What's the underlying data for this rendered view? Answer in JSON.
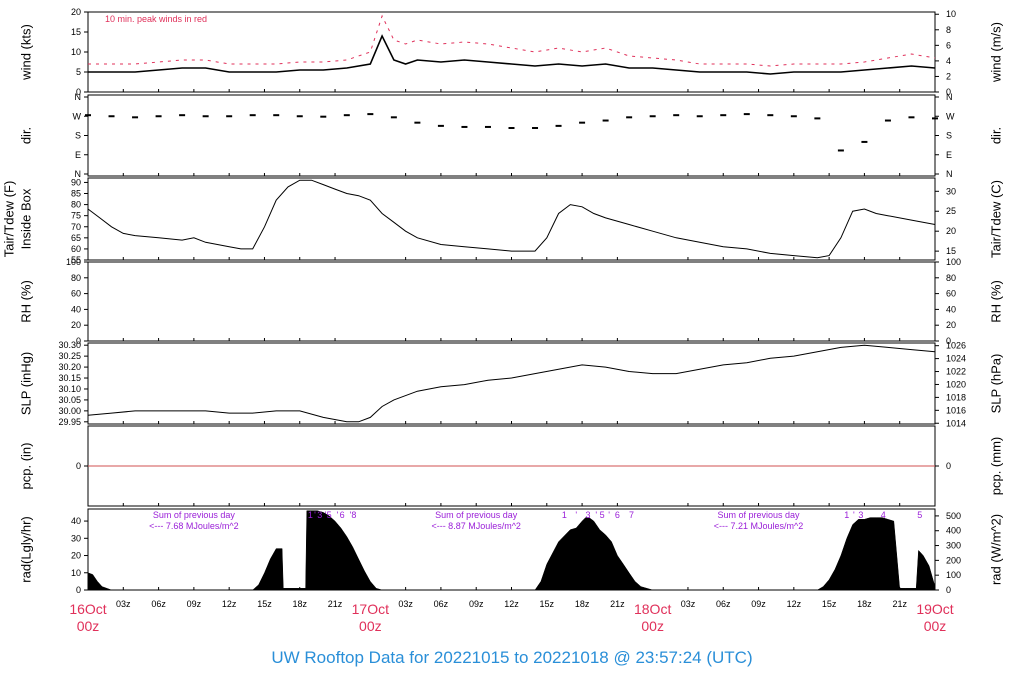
{
  "footer": {
    "title": "UW Rooftop Data for 20221015  to  20221018 @ 23:57:24  (UTC)"
  },
  "colors": {
    "frame": "#000000",
    "peak": "#e0305a",
    "day_label": "#e0305a",
    "pcp_line": "#d05050",
    "annotation": "#9a1fd8",
    "title": "#2a8fd8"
  },
  "time_axis": {
    "range_hours": [
      0,
      72
    ],
    "minor_tick_labels": [
      {
        "h": 3,
        "t": "03z"
      },
      {
        "h": 6,
        "t": "06z"
      },
      {
        "h": 9,
        "t": "09z"
      },
      {
        "h": 12,
        "t": "12z"
      },
      {
        "h": 15,
        "t": "15z"
      },
      {
        "h": 18,
        "t": "18z"
      },
      {
        "h": 21,
        "t": "21z"
      },
      {
        "h": 27,
        "t": "03z"
      },
      {
        "h": 30,
        "t": "06z"
      },
      {
        "h": 33,
        "t": "09z"
      },
      {
        "h": 36,
        "t": "12z"
      },
      {
        "h": 39,
        "t": "15z"
      },
      {
        "h": 42,
        "t": "18z"
      },
      {
        "h": 45,
        "t": "21z"
      },
      {
        "h": 51,
        "t": "03z"
      },
      {
        "h": 54,
        "t": "06z"
      },
      {
        "h": 57,
        "t": "09z"
      },
      {
        "h": 60,
        "t": "12z"
      },
      {
        "h": 63,
        "t": "15z"
      },
      {
        "h": 66,
        "t": "18z"
      },
      {
        "h": 69,
        "t": "21z"
      }
    ],
    "day_labels": [
      {
        "h": 0,
        "date": "16Oct",
        "time": "00z"
      },
      {
        "h": 24,
        "date": "17Oct",
        "time": "00z"
      },
      {
        "h": 48,
        "date": "18Oct",
        "time": "00z"
      },
      {
        "h": 72,
        "date": "19Oct",
        "time": "00z"
      }
    ]
  },
  "chart_data": [
    {
      "id": "wind",
      "type": "line",
      "ylabel_left": "wind (kts)",
      "ylabel_right": "wind (m/s)",
      "ylim": [
        0,
        20
      ],
      "yticks_left": [
        0,
        5,
        10,
        15,
        20
      ],
      "yticks_right": [
        0,
        2,
        4,
        6,
        8,
        10
      ],
      "right_scale": "m/s",
      "annotation": "10 min. peak winds in red",
      "x_hours": [
        0,
        2,
        4,
        6,
        8,
        10,
        12,
        14,
        16,
        18,
        20,
        22,
        24,
        25,
        26,
        27,
        28,
        30,
        32,
        34,
        36,
        38,
        40,
        42,
        44,
        46,
        48,
        50,
        52,
        54,
        56,
        58,
        60,
        62,
        64,
        66,
        68,
        70,
        72
      ],
      "series": [
        {
          "values": [
            5,
            5,
            5,
            5.5,
            6,
            6,
            5,
            5,
            5,
            5.5,
            5.5,
            6,
            7,
            14,
            8,
            7,
            8,
            7.5,
            8,
            7.5,
            7,
            6.5,
            7,
            6.5,
            7,
            6,
            6,
            5.5,
            5,
            5,
            5,
            4.5,
            5,
            5,
            5,
            5.5,
            6,
            6.5,
            6
          ]
        },
        {
          "name": "10 min. peak winds",
          "style": "peak",
          "values": [
            7,
            7,
            7,
            7.5,
            8,
            8,
            7,
            7,
            7,
            7.5,
            7.5,
            8,
            10,
            19,
            13,
            12,
            13,
            12,
            12.5,
            12,
            11,
            10,
            11,
            10,
            11,
            9,
            8.5,
            8,
            7,
            7,
            7,
            6.5,
            7,
            7,
            7,
            7.5,
            8.5,
            9.5,
            8.5
          ]
        }
      ]
    },
    {
      "id": "dir",
      "type": "scatter",
      "ylabel_left": "dir.",
      "ylabel_right": "dir.",
      "yticks_labels": [
        "N",
        "E",
        "S",
        "W",
        "N"
      ],
      "ylim": [
        0,
        360
      ],
      "x_hours": [
        0,
        2,
        4,
        6,
        8,
        10,
        12,
        14,
        16,
        18,
        20,
        22,
        24,
        26,
        28,
        30,
        32,
        34,
        36,
        38,
        40,
        42,
        44,
        46,
        48,
        50,
        52,
        54,
        56,
        58,
        60,
        62,
        64,
        66,
        68,
        70,
        72
      ],
      "values": [
        275,
        270,
        265,
        270,
        275,
        270,
        270,
        275,
        275,
        270,
        268,
        275,
        280,
        265,
        240,
        225,
        220,
        220,
        215,
        215,
        225,
        240,
        250,
        265,
        270,
        275,
        270,
        275,
        280,
        275,
        270,
        260,
        110,
        150,
        250,
        265,
        260
      ]
    },
    {
      "id": "temp",
      "type": "line",
      "ylabel_left": [
        "Tair/Tdew (F)",
        "Inside Box"
      ],
      "ylabel_right": "Tair/Tdew (C)",
      "ylim": [
        55,
        92
      ],
      "yticks_left": [
        55,
        60,
        65,
        70,
        75,
        80,
        85,
        90
      ],
      "yticks_right": [
        15,
        20,
        25,
        30
      ],
      "right_scale": "C",
      "x_hours": [
        0,
        1,
        2,
        3,
        4,
        6,
        8,
        9,
        10,
        11,
        12,
        13,
        14,
        15,
        16,
        17,
        18,
        19,
        20,
        21,
        22,
        23,
        24,
        25,
        26,
        27,
        28,
        30,
        32,
        34,
        36,
        38,
        39,
        40,
        41,
        42,
        43,
        44,
        46,
        48,
        50,
        52,
        54,
        56,
        58,
        60,
        62,
        63,
        64,
        65,
        66,
        67,
        68,
        70,
        72
      ],
      "series": [
        {
          "values": [
            78,
            74,
            70,
            67,
            66,
            65,
            64,
            65,
            63,
            62,
            61,
            60,
            60,
            70,
            82,
            88,
            91,
            91,
            89,
            87,
            85,
            84,
            82,
            76,
            72,
            68,
            65,
            62,
            61,
            60,
            59,
            59,
            65,
            76,
            80,
            79,
            76,
            74,
            71,
            68,
            65,
            63,
            61,
            60,
            58,
            57,
            56,
            57,
            65,
            77,
            78,
            76,
            75,
            73,
            71
          ]
        }
      ]
    },
    {
      "id": "rh",
      "type": "line",
      "ylabel_left": "RH (%)",
      "ylabel_right": "RH (%)",
      "ylim": [
        0,
        100
      ],
      "yticks_left": [
        0,
        20,
        40,
        60,
        80,
        100
      ],
      "yticks_right": [
        0,
        20,
        40,
        60,
        80,
        100
      ],
      "series": []
    },
    {
      "id": "slp",
      "type": "line",
      "ylabel_left": "SLP (inHg)",
      "ylabel_right": "SLP (hPa)",
      "ylim": [
        29.94,
        30.31
      ],
      "yticks_left": [
        29.95,
        30.0,
        30.05,
        30.1,
        30.15,
        30.2,
        30.25,
        30.3
      ],
      "yticks_right": [
        1014,
        1016,
        1018,
        1020,
        1022,
        1024,
        1026
      ],
      "right_scale": "hPa",
      "x_hours": [
        0,
        2,
        4,
        6,
        8,
        10,
        12,
        14,
        16,
        18,
        20,
        22,
        23,
        24,
        25,
        26,
        28,
        30,
        32,
        34,
        36,
        38,
        40,
        42,
        44,
        46,
        48,
        50,
        52,
        54,
        56,
        58,
        60,
        62,
        64,
        66,
        68,
        70,
        72
      ],
      "series": [
        {
          "values": [
            29.98,
            29.99,
            30.0,
            30.0,
            30.0,
            30.0,
            29.99,
            29.99,
            30.0,
            30.0,
            29.97,
            29.95,
            29.95,
            29.97,
            30.02,
            30.05,
            30.09,
            30.11,
            30.12,
            30.14,
            30.15,
            30.17,
            30.19,
            30.21,
            30.2,
            30.18,
            30.17,
            30.17,
            30.19,
            30.21,
            30.22,
            30.24,
            30.25,
            30.27,
            30.29,
            30.3,
            30.29,
            30.28,
            30.27
          ]
        }
      ]
    },
    {
      "id": "pcp",
      "type": "line",
      "ylabel_left": "pcp. (in)",
      "ylabel_right": "pcp. (mm)",
      "ylim": [
        -1,
        1
      ],
      "yticks_left": [
        0
      ],
      "yticks_right": [
        0
      ],
      "series": [
        {
          "values": [
            0,
            0
          ]
        }
      ]
    },
    {
      "id": "rad",
      "type": "area",
      "ylabel_left": "rad(Lgly/hr)",
      "ylabel_right": "rad (W/m^2)",
      "ylim": [
        0,
        47
      ],
      "yticks_left": [
        0,
        10,
        20,
        30,
        40
      ],
      "yticks_right": [
        0,
        100,
        200,
        300,
        400,
        500
      ],
      "right_scale": "W/m^2",
      "annotations": [
        {
          "h": 9,
          "lines": [
            "Sum of previous day",
            "<--- 7.68 MJoules/m^2"
          ]
        },
        {
          "h": 33,
          "lines": [
            "Sum of previous day",
            "<--- 8.87 MJoules/m^2"
          ]
        },
        {
          "h": 57,
          "lines": [
            "Sum of previous day",
            "<--- 7.21 MJoules/m^2"
          ]
        }
      ],
      "marks": [
        {
          "h": 18.9,
          "t": "1"
        },
        {
          "h": 19.3,
          "t": "'"
        },
        {
          "h": 19.7,
          "t": "3"
        },
        {
          "h": 20.2,
          "t": "'"
        },
        {
          "h": 20.5,
          "t": "5"
        },
        {
          "h": 21.2,
          "t": "'"
        },
        {
          "h": 21.6,
          "t": "6"
        },
        {
          "h": 22.3,
          "t": "'"
        },
        {
          "h": 22.6,
          "t": "8"
        },
        {
          "h": 40.5,
          "t": "1"
        },
        {
          "h": 41.5,
          "t": "'"
        },
        {
          "h": 42.5,
          "t": "3"
        },
        {
          "h": 43.2,
          "t": "'"
        },
        {
          "h": 43.7,
          "t": "5"
        },
        {
          "h": 44.3,
          "t": "'"
        },
        {
          "h": 45,
          "t": "6"
        },
        {
          "h": 46.2,
          "t": "7"
        },
        {
          "h": 64.5,
          "t": "1"
        },
        {
          "h": 65.1,
          "t": "'"
        },
        {
          "h": 65.7,
          "t": "3"
        },
        {
          "h": 67.6,
          "t": "4"
        },
        {
          "h": 70.7,
          "t": "5"
        }
      ],
      "x_hours": [
        0,
        0.4,
        0.8,
        1.2,
        2,
        14,
        14.5,
        15,
        15.5,
        16,
        16.5,
        16.6,
        17,
        18,
        18.5,
        18.6,
        19,
        19.5,
        20,
        20.5,
        21,
        21.5,
        22,
        22.5,
        23,
        23.5,
        24,
        24.5,
        25,
        38,
        38.5,
        39,
        40,
        41,
        41.5,
        42,
        42.3,
        42.6,
        43,
        43.5,
        44,
        44.5,
        45,
        45.5,
        46,
        46.5,
        47,
        48,
        62,
        62.5,
        63,
        63.5,
        64,
        64.5,
        65,
        65.5,
        66,
        66.5,
        67,
        67.5,
        68,
        68.5,
        69,
        69.5,
        70.4,
        70.6,
        71,
        71.5,
        72
      ],
      "values": [
        10,
        9,
        5,
        2,
        0,
        0,
        3,
        10,
        18,
        24,
        24,
        1,
        1,
        1,
        1,
        46,
        46,
        46,
        45,
        43,
        40,
        36,
        31,
        25,
        18,
        11,
        5,
        1,
        0,
        0,
        5,
        15,
        28,
        35,
        36,
        40,
        42,
        42,
        40,
        35,
        32,
        28,
        20,
        15,
        10,
        5,
        2,
        0,
        0,
        2,
        6,
        12,
        20,
        30,
        38,
        41,
        41,
        42,
        42,
        42,
        41,
        40,
        1,
        1,
        1,
        23,
        20,
        14,
        2
      ]
    }
  ]
}
